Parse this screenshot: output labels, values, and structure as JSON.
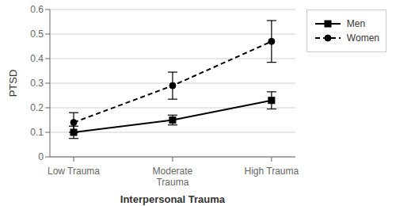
{
  "chart_data": {
    "type": "line",
    "categories": [
      "Low Trauma",
      "Moderate\nTrauma",
      "High Trauma"
    ],
    "series": [
      {
        "name": "Men",
        "color": "#000000",
        "marker": "square",
        "line_style": "solid",
        "values": [
          0.1,
          0.15,
          0.23
        ],
        "errors": [
          0.025,
          0.02,
          0.035
        ]
      },
      {
        "name": "Women",
        "color": "#000000",
        "marker": "circle",
        "line_style": "dashed",
        "values": [
          0.14,
          0.29,
          0.47
        ],
        "errors": [
          0.04,
          0.055,
          0.085
        ]
      }
    ],
    "ylabel": "PTSD",
    "xlabel": "Interpersonal Trauma",
    "ylim": [
      0,
      0.6
    ],
    "yticks": [
      0,
      0.1,
      0.2,
      0.3,
      0.4,
      0.5,
      0.6
    ],
    "grid": true,
    "legend": "right"
  }
}
